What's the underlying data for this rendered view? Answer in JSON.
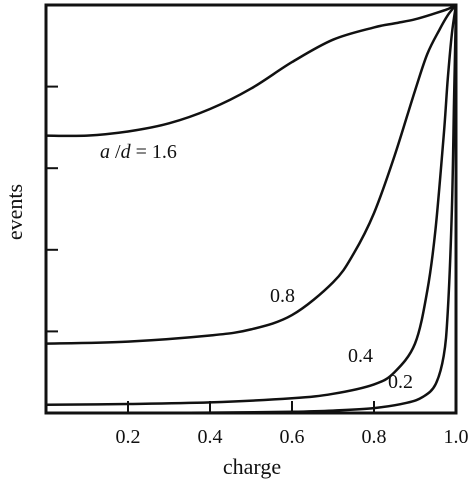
{
  "chart_data": {
    "type": "line",
    "xlabel": "charge",
    "ylabel": "events",
    "xlim": [
      0,
      1.0
    ],
    "ylim": [
      0,
      1.0
    ],
    "x_ticks": [
      0.2,
      0.4,
      0.6,
      0.8,
      1.0
    ],
    "x_tick_labels": [
      "0.2",
      "0.4",
      "0.6",
      "0.8",
      "1.0"
    ],
    "y_tick_count": 4,
    "y_tick_labels_shown": false,
    "grid": false,
    "series": [
      {
        "label_text": "a /d = 1.6",
        "label_parts": {
          "a": "a",
          "sep": " /",
          "d": "d",
          "rest": " = 1.6"
        },
        "x": [
          0.0,
          0.1,
          0.2,
          0.3,
          0.4,
          0.5,
          0.6,
          0.7,
          0.8,
          0.85,
          0.9,
          0.95,
          0.98,
          1.0
        ],
        "y": [
          0.68,
          0.68,
          0.69,
          0.71,
          0.745,
          0.795,
          0.86,
          0.915,
          0.945,
          0.955,
          0.965,
          0.98,
          0.99,
          1.0
        ]
      },
      {
        "label_text": "0.8",
        "x": [
          0.0,
          0.2,
          0.4,
          0.5,
          0.6,
          0.7,
          0.75,
          0.8,
          0.85,
          0.9,
          0.93,
          0.96,
          0.98,
          1.0
        ],
        "y": [
          0.17,
          0.175,
          0.19,
          0.205,
          0.24,
          0.32,
          0.39,
          0.49,
          0.63,
          0.79,
          0.88,
          0.94,
          0.975,
          1.0
        ]
      },
      {
        "label_text": "0.4",
        "x": [
          0.0,
          0.2,
          0.4,
          0.6,
          0.7,
          0.8,
          0.85,
          0.9,
          0.93,
          0.95,
          0.97,
          0.98,
          0.99,
          1.0
        ],
        "y": [
          0.02,
          0.022,
          0.026,
          0.036,
          0.047,
          0.07,
          0.1,
          0.17,
          0.3,
          0.45,
          0.68,
          0.82,
          0.93,
          1.0
        ]
      },
      {
        "label_text": "0.2",
        "x": [
          0.0,
          0.2,
          0.4,
          0.6,
          0.7,
          0.8,
          0.88,
          0.92,
          0.95,
          0.97,
          0.98,
          0.99,
          0.995,
          1.0
        ],
        "y": [
          0.0,
          0.0,
          0.001,
          0.003,
          0.006,
          0.012,
          0.025,
          0.04,
          0.07,
          0.14,
          0.25,
          0.5,
          0.75,
          1.0
        ]
      }
    ]
  }
}
